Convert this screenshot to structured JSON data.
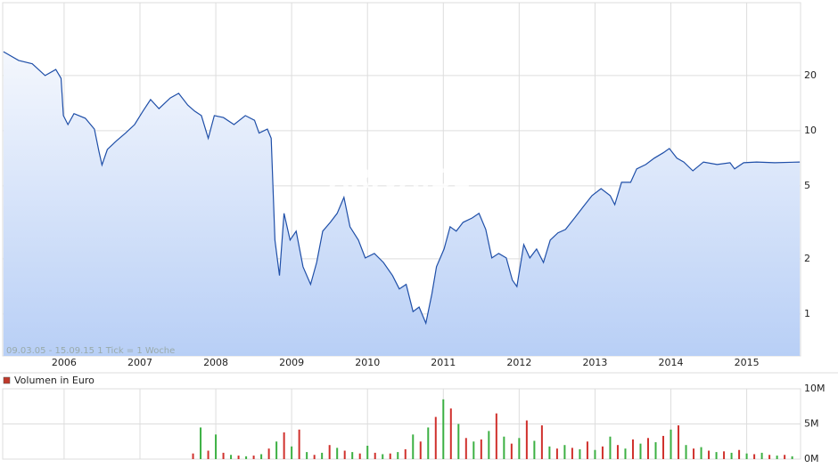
{
  "chart_data": [
    {
      "type": "line",
      "fill": true,
      "color": "#1f4fa8",
      "log_scale": true,
      "grid": true,
      "annotation": "09.03.05 - 15.09.15   1 Tick = 1 Woche",
      "watermark": "ARIVA.DE",
      "x": [
        2005.2,
        2005.4,
        2005.58,
        2005.75,
        2005.89,
        2005.96,
        2005.99,
        2006.05,
        2006.13,
        2006.28,
        2006.4,
        2006.46,
        2006.5,
        2006.57,
        2006.69,
        2006.81,
        2006.93,
        2007.04,
        2007.14,
        2007.25,
        2007.4,
        2007.51,
        2007.63,
        2007.72,
        2007.81,
        2007.9,
        2007.98,
        2008.1,
        2008.24,
        2008.39,
        2008.51,
        2008.57,
        2008.68,
        2008.73,
        2008.78,
        2008.84,
        2008.9,
        2008.98,
        2009.06,
        2009.15,
        2009.25,
        2009.33,
        2009.41,
        2009.51,
        2009.6,
        2009.69,
        2009.77,
        2009.88,
        2009.97,
        2010.09,
        2010.21,
        2010.33,
        2010.42,
        2010.51,
        2010.6,
        2010.68,
        2010.77,
        2010.85,
        2010.91,
        2011.01,
        2011.09,
        2011.17,
        2011.26,
        2011.38,
        2011.47,
        2011.56,
        2011.64,
        2011.73,
        2011.83,
        2011.91,
        2011.97,
        2012.06,
        2012.14,
        2012.23,
        2012.32,
        2012.41,
        2012.51,
        2012.61,
        2012.73,
        2012.85,
        2012.96,
        2013.08,
        2013.2,
        2013.26,
        2013.35,
        2013.47,
        2013.55,
        2013.67,
        2013.78,
        2013.9,
        2013.98,
        2014.08,
        2014.17,
        2014.29,
        2014.43,
        2014.61,
        2014.78,
        2014.84,
        2014.96,
        2015.13,
        2015.37,
        2015.7
      ],
      "values": [
        27,
        24.2,
        23.2,
        20,
        21.6,
        19.3,
        12.1,
        10.8,
        12.4,
        11.7,
        10.2,
        7.7,
        6.5,
        7.9,
        8.8,
        9.7,
        10.8,
        12.8,
        14.8,
        13.2,
        15.1,
        16,
        13.8,
        12.8,
        12.1,
        9.1,
        12.1,
        11.8,
        10.8,
        12.1,
        11.4,
        9.7,
        10.2,
        9.1,
        2.53,
        1.62,
        3.54,
        2.53,
        2.83,
        1.81,
        1.45,
        1.91,
        2.83,
        3.16,
        3.54,
        4.33,
        2.99,
        2.53,
        2.02,
        2.14,
        1.91,
        1.62,
        1.37,
        1.45,
        1.03,
        1.09,
        0.89,
        1.29,
        1.81,
        2.26,
        2.99,
        2.83,
        3.16,
        3.34,
        3.54,
        2.89,
        2.02,
        2.14,
        2.02,
        1.53,
        1.41,
        2.39,
        2.02,
        2.26,
        1.91,
        2.53,
        2.77,
        2.89,
        3.34,
        3.87,
        4.42,
        4.83,
        4.42,
        3.95,
        5.23,
        5.23,
        6.19,
        6.54,
        7.08,
        7.58,
        8.0,
        7.08,
        6.75,
        6.04,
        6.75,
        6.54,
        6.69,
        6.19,
        6.69,
        6.75,
        6.69,
        6.75
      ],
      "xlim": [
        2005.19,
        2015.71
      ],
      "ylim": [
        0.59,
        50
      ],
      "yticks": [
        1,
        2,
        5,
        10,
        20
      ],
      "xticks": [
        2006,
        2007,
        2008,
        2009,
        2010,
        2011,
        2012,
        2013,
        2014,
        2015
      ]
    },
    {
      "type": "bar",
      "label": "Volumen in Euro",
      "legend_color": "#c0392b",
      "grid": true,
      "xlim": [
        2005.19,
        2015.71
      ],
      "ylim": [
        0,
        10
      ],
      "yticks": [
        {
          "value": 0,
          "label": "0M"
        },
        {
          "value": 5,
          "label": "5M"
        },
        {
          "value": 10,
          "label": "10M"
        }
      ],
      "xticks": [
        2006,
        2007,
        2008,
        2009,
        2010,
        2011,
        2012,
        2013,
        2014,
        2015
      ],
      "series": [
        {
          "color": "#d0312d",
          "x": [
            2007.7,
            2007.9,
            2008.1,
            2008.3,
            2008.5,
            2008.7,
            2008.9,
            2009.1,
            2009.3,
            2009.5,
            2009.7,
            2009.9,
            2010.1,
            2010.3,
            2010.5,
            2010.7,
            2010.9,
            2011.1,
            2011.3,
            2011.5,
            2011.7,
            2011.9,
            2012.1,
            2012.3,
            2012.5,
            2012.7,
            2012.9,
            2013.1,
            2013.3,
            2013.5,
            2013.7,
            2013.9,
            2014.1,
            2014.3,
            2014.5,
            2014.7,
            2014.9,
            2015.1,
            2015.3,
            2015.5
          ],
          "values": [
            0.8,
            1.2,
            0.9,
            0.5,
            0.5,
            1.5,
            3.8,
            4.2,
            0.6,
            2.0,
            1.2,
            0.8,
            0.9,
            0.8,
            1.4,
            2.5,
            6.0,
            7.2,
            3.0,
            2.8,
            6.5,
            2.2,
            5.5,
            4.8,
            1.5,
            1.6,
            2.5,
            1.8,
            2.0,
            2.8,
            3.0,
            3.3,
            4.8,
            1.5,
            1.2,
            1.1,
            1.3,
            0.7,
            0.6,
            0.6
          ]
        },
        {
          "color": "#3cb043",
          "x": [
            2007.8,
            2008.0,
            2008.2,
            2008.4,
            2008.6,
            2008.8,
            2009.0,
            2009.2,
            2009.4,
            2009.6,
            2009.8,
            2010.0,
            2010.2,
            2010.4,
            2010.6,
            2010.8,
            2011.0,
            2011.2,
            2011.4,
            2011.6,
            2011.8,
            2012.0,
            2012.2,
            2012.4,
            2012.6,
            2012.8,
            2013.0,
            2013.2,
            2013.4,
            2013.6,
            2013.8,
            2014.0,
            2014.2,
            2014.4,
            2014.6,
            2014.8,
            2015.0,
            2015.2,
            2015.4,
            2015.6
          ],
          "values": [
            4.5,
            3.5,
            0.6,
            0.4,
            0.7,
            2.5,
            1.8,
            1.0,
            0.9,
            1.6,
            1.0,
            1.9,
            0.7,
            1.0,
            3.5,
            4.5,
            8.5,
            5.0,
            2.5,
            4.0,
            3.2,
            3.0,
            2.6,
            1.8,
            2.0,
            1.4,
            1.3,
            3.2,
            1.5,
            2.2,
            2.4,
            4.2,
            2.0,
            1.7,
            1.0,
            0.9,
            0.8,
            0.9,
            0.5,
            0.4
          ]
        }
      ]
    }
  ]
}
